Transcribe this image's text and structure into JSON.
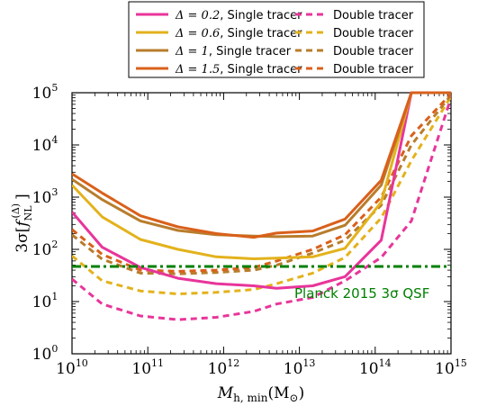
{
  "chart_data": {
    "type": "line",
    "xscale": "log",
    "yscale": "log",
    "xlim": [
      10000000000.0,
      1000000000000000.0
    ],
    "ylim": [
      1,
      100000.0
    ],
    "x_ticks": [
      {
        "value": 10000000000.0,
        "base": "10",
        "exp": "10"
      },
      {
        "value": 100000000000.0,
        "base": "10",
        "exp": "11"
      },
      {
        "value": 1000000000000.0,
        "base": "10",
        "exp": "12"
      },
      {
        "value": 10000000000000.0,
        "base": "10",
        "exp": "13"
      },
      {
        "value": 100000000000000.0,
        "base": "10",
        "exp": "14"
      },
      {
        "value": 1000000000000000.0,
        "base": "10",
        "exp": "15"
      }
    ],
    "y_ticks": [
      {
        "value": 1,
        "base": "10",
        "exp": "0"
      },
      {
        "value": 10,
        "base": "10",
        "exp": "1"
      },
      {
        "value": 100,
        "base": "10",
        "exp": "2"
      },
      {
        "value": 1000,
        "base": "10",
        "exp": "3"
      },
      {
        "value": 10000,
        "base": "10",
        "exp": "4"
      },
      {
        "value": 100000,
        "base": "10",
        "exp": "5"
      }
    ],
    "xlabel": {
      "main": "M",
      "sub": "h, min",
      "tail": "(M",
      "tail_sub": "⊙",
      "close": ")"
    },
    "ylabel": {
      "pre": "3σ",
      "f": "f",
      "sub": "NL",
      "sup": "(Δ)"
    },
    "annotation": {
      "text": "Planck 2015 3σ QSF",
      "color": "#008000",
      "y": 47
    },
    "legend_position": "top (above plot)",
    "grid": false,
    "series": [
      {
        "name": "Δ = 0.2, Single tracer",
        "label_math": "Δ = 0.2",
        "label_text": ", Single tracer",
        "color": "#e8359a",
        "style": "solid",
        "x": [
          10000000000.0,
          25000000000.0,
          80000000000.0,
          250000000000.0,
          800000000000.0,
          2500000000000.0,
          5000000000000.0,
          15000000000000.0,
          40000000000000.0,
          120000000000000.0,
          300000000000000.0,
          1000000000000000.0
        ],
        "y": [
          520,
          110,
          45,
          28,
          22,
          20,
          18,
          20,
          30,
          150,
          100000,
          100000
        ]
      },
      {
        "name": "Δ = 0.6, Single tracer",
        "label_math": "Δ = 0.6",
        "label_text": ", Single tracer",
        "color": "#e3b21c",
        "style": "solid",
        "x": [
          10000000000.0,
          25000000000.0,
          80000000000.0,
          250000000000.0,
          800000000000.0,
          2500000000000.0,
          5000000000000.0,
          15000000000000.0,
          40000000000000.0,
          120000000000000.0,
          300000000000000.0,
          1000000000000000.0
        ],
        "y": [
          1700,
          420,
          155,
          100,
          72,
          66,
          68,
          72,
          105,
          800,
          100000,
          100000
        ]
      },
      {
        "name": "Δ = 1, Single tracer",
        "label_math": "Δ = 1",
        "label_text": ", Single tracer",
        "color": "#b87d2c",
        "style": "solid",
        "x": [
          10000000000.0,
          25000000000.0,
          80000000000.0,
          250000000000.0,
          800000000000.0,
          2500000000000.0,
          5000000000000.0,
          15000000000000.0,
          40000000000000.0,
          120000000000000.0,
          300000000000000.0,
          1000000000000000.0
        ],
        "y": [
          2200,
          900,
          350,
          230,
          190,
          180,
          175,
          180,
          290,
          1700,
          100000,
          100000
        ]
      },
      {
        "name": "Δ = 1.5, Single tracer",
        "label_math": "Δ = 1.5",
        "label_text": ", Single tracer",
        "color": "#d9601b",
        "style": "solid",
        "x": [
          10000000000.0,
          25000000000.0,
          80000000000.0,
          250000000000.0,
          800000000000.0,
          2500000000000.0,
          5000000000000.0,
          15000000000000.0,
          40000000000000.0,
          120000000000000.0,
          300000000000000.0,
          1000000000000000.0
        ],
        "y": [
          2800,
          1200,
          440,
          270,
          200,
          170,
          205,
          225,
          380,
          2100,
          100000,
          100000
        ]
      },
      {
        "name": "Double tracer",
        "label_text": "Double tracer",
        "color": "#e8359a",
        "style": "dashed",
        "x": [
          10000000000.0,
          25000000000.0,
          80000000000.0,
          250000000000.0,
          800000000000.0,
          2500000000000.0,
          5000000000000.0,
          15000000000000.0,
          40000000000000.0,
          120000000000000.0,
          300000000000000.0,
          1000000000000000.0
        ],
        "y": [
          27,
          9,
          5.3,
          4.5,
          5,
          6.5,
          9,
          12,
          25,
          70,
          350,
          80000
        ]
      },
      {
        "name": "Double tracer",
        "label_text": "Double tracer",
        "color": "#e3b21c",
        "style": "dashed",
        "x": [
          10000000000.0,
          25000000000.0,
          80000000000.0,
          250000000000.0,
          800000000000.0,
          2500000000000.0,
          5000000000000.0,
          15000000000000.0,
          40000000000000.0,
          120000000000000.0,
          300000000000000.0,
          1000000000000000.0
        ],
        "y": [
          75,
          25,
          16,
          14,
          15,
          17,
          22,
          35,
          70,
          400,
          5000,
          85000
        ]
      },
      {
        "name": "Double tracer",
        "label_text": "Double tracer",
        "color": "#b87d2c",
        "style": "dashed",
        "x": [
          10000000000.0,
          25000000000.0,
          80000000000.0,
          250000000000.0,
          800000000000.0,
          2500000000000.0,
          5000000000000.0,
          15000000000000.0,
          40000000000000.0,
          120000000000000.0,
          300000000000000.0,
          1000000000000000.0
        ],
        "y": [
          190,
          65,
          35,
          34,
          36,
          40,
          50,
          85,
          150,
          700,
          10000,
          90000
        ]
      },
      {
        "name": "Double tracer",
        "label_text": "Double tracer",
        "color": "#d9601b",
        "style": "dashed",
        "x": [
          10000000000.0,
          25000000000.0,
          80000000000.0,
          250000000000.0,
          800000000000.0,
          2500000000000.0,
          5000000000000.0,
          15000000000000.0,
          40000000000000.0,
          120000000000000.0,
          300000000000000.0,
          1000000000000000.0
        ],
        "y": [
          240,
          80,
          40,
          38,
          40,
          45,
          60,
          100,
          190,
          1000,
          15000,
          95000
        ]
      }
    ]
  }
}
